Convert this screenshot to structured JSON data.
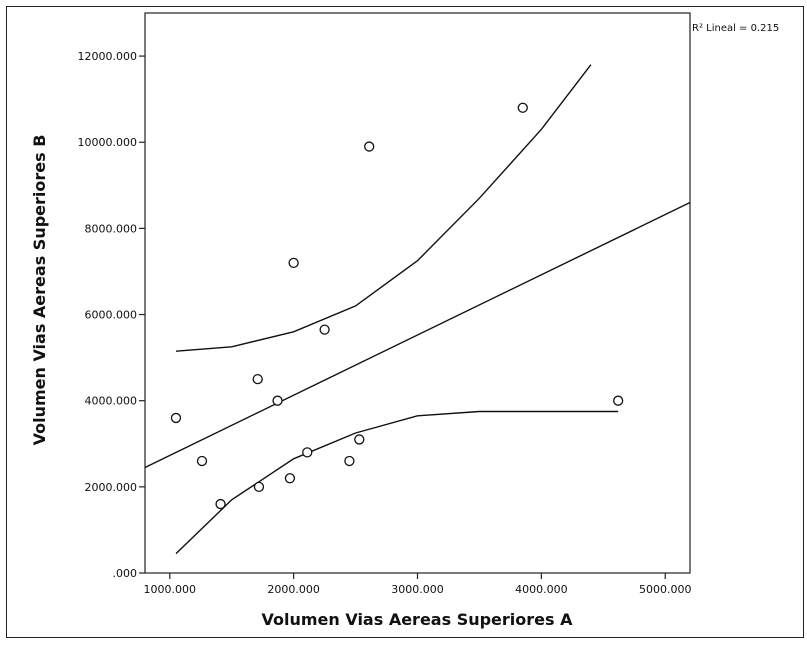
{
  "chart_data": {
    "type": "scatter",
    "title": "",
    "xlabel": "Volumen Vias Aereas Superiores A",
    "ylabel": "Volumen Vias Aereas Superiores B",
    "xlim": [
      800,
      5200
    ],
    "ylim": [
      0,
      13000
    ],
    "x_ticks": [
      {
        "value": 1000,
        "label": "1000.000"
      },
      {
        "value": 2000,
        "label": "2000.000"
      },
      {
        "value": 3000,
        "label": "3000.000"
      },
      {
        "value": 4000,
        "label": "4000.000"
      },
      {
        "value": 5000,
        "label": "5000.000"
      }
    ],
    "y_ticks": [
      {
        "value": 0,
        "label": ".000"
      },
      {
        "value": 2000,
        "label": "2000.000"
      },
      {
        "value": 4000,
        "label": "4000.000"
      },
      {
        "value": 6000,
        "label": "6000.000"
      },
      {
        "value": 8000,
        "label": "8000.000"
      },
      {
        "value": 10000,
        "label": "10000.000"
      },
      {
        "value": 12000,
        "label": "12000.000"
      }
    ],
    "points": [
      {
        "x": 1050,
        "y": 3600
      },
      {
        "x": 1260,
        "y": 2600
      },
      {
        "x": 1410,
        "y": 1600
      },
      {
        "x": 1710,
        "y": 4500
      },
      {
        "x": 1720,
        "y": 2000
      },
      {
        "x": 1870,
        "y": 4000
      },
      {
        "x": 1970,
        "y": 2200
      },
      {
        "x": 2000,
        "y": 7200
      },
      {
        "x": 2110,
        "y": 2800
      },
      {
        "x": 2250,
        "y": 5650
      },
      {
        "x": 2450,
        "y": 2600
      },
      {
        "x": 2530,
        "y": 3100
      },
      {
        "x": 2610,
        "y": 9900
      },
      {
        "x": 3850,
        "y": 10800
      },
      {
        "x": 4620,
        "y": 4000
      }
    ],
    "fit_line": {
      "x": [
        800,
        5200
      ],
      "y": [
        2450,
        8600
      ]
    },
    "upper_band": {
      "x": [
        1050,
        1500,
        2000,
        2500,
        3000,
        3500,
        4000,
        4400
      ],
      "y": [
        5150,
        5250,
        5600,
        6200,
        7250,
        8700,
        10300,
        11800
      ]
    },
    "lower_band": {
      "x": [
        1050,
        1500,
        2000,
        2500,
        3000,
        3500,
        4000,
        4620
      ],
      "y": [
        450,
        1700,
        2650,
        3250,
        3650,
        3750,
        3750,
        3750
      ]
    },
    "r2_label": "R² Lineal = 0.215",
    "grid": false,
    "legend": "none"
  }
}
